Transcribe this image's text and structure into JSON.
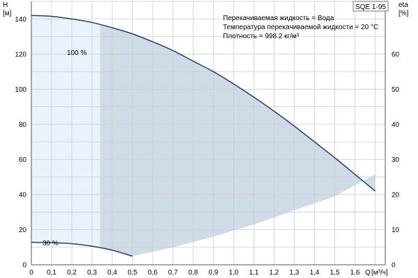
{
  "chart_data": {
    "type": "area",
    "title": "SQE 1-95",
    "info_lines": [
      "Перекачиваемая жидкость = Вода",
      "Температура перекачиваемой жидкости = 20 °C",
      "Плотность = 998.2 кг/м³"
    ],
    "xlabel": "Q",
    "xunit": "[м³/ч]",
    "ylabel_left": "H",
    "yunit_left": "[м]",
    "ylabel_right": "eta",
    "yunit_right": "[%]",
    "xlim": [
      0,
      1.7
    ],
    "ylim_left": [
      0,
      150
    ],
    "ylim_right": [
      0,
      75
    ],
    "x_ticks": [
      "0",
      "0,1",
      "0,2",
      "0,3",
      "0,4",
      "0,5",
      "0,6",
      "0,7",
      "0,8",
      "0,9",
      "1,0",
      "1,1",
      "1,2",
      "1,3",
      "1,4",
      "1,5",
      "1,6"
    ],
    "y_left_ticks": [
      0,
      20,
      40,
      60,
      80,
      100,
      120,
      140
    ],
    "y_right_ticks": [
      0,
      10,
      20,
      30,
      40,
      50,
      60
    ],
    "grid": true,
    "series": [
      {
        "name": "100 %",
        "x": [
          0,
          0.1,
          0.2,
          0.3,
          0.4,
          0.5,
          0.6,
          0.7,
          0.8,
          0.9,
          1.0,
          1.1,
          1.2,
          1.3,
          1.4,
          1.5,
          1.6,
          1.7
        ],
        "y": [
          142,
          141.5,
          140,
          138,
          135,
          131.5,
          127,
          122,
          116,
          110,
          103,
          95.5,
          87.5,
          79,
          70,
          61,
          51.5,
          42
        ]
      },
      {
        "name": "30 %",
        "x": [
          0,
          0.1,
          0.2,
          0.3,
          0.4,
          0.5
        ],
        "y": [
          12.8,
          12.6,
          12,
          10.6,
          8.3,
          4.9
        ]
      }
    ],
    "operating_range": {
      "min_flow_100": 0.34,
      "max_flow_100": 1.7,
      "lower_boundary": {
        "x": [
          0.5,
          0.7,
          0.9,
          1.1,
          1.3,
          1.5,
          1.7
        ],
        "y": [
          4.9,
          10,
          16,
          23,
          31,
          39,
          51.5
        ]
      }
    },
    "colors": {
      "curve": "#1f3f6e",
      "fill_full": "#eaf2fc",
      "fill_operating": "#cfdbe6",
      "grid": "#cccccc"
    }
  }
}
